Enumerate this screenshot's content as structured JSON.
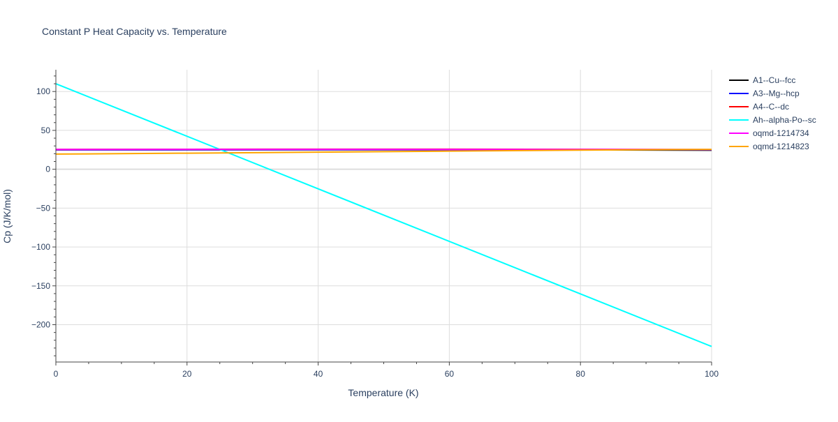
{
  "chart_data": {
    "type": "line",
    "title": "Constant P Heat Capacity vs. Temperature",
    "xlabel": "Temperature (K)",
    "ylabel": "Cp (J/K/mol)",
    "xlim": [
      0,
      100
    ],
    "ylim": [
      -248,
      128
    ],
    "x_ticks": [
      0,
      20,
      40,
      60,
      80,
      100
    ],
    "y_ticks": [
      -200,
      -150,
      -100,
      -50,
      0,
      50,
      100
    ],
    "grid": true,
    "legend_position": "right",
    "series": [
      {
        "name": "A1--Cu--fcc",
        "color": "#000000",
        "x": [
          0,
          20,
          40,
          60,
          80,
          100
        ],
        "y": [
          25,
          25,
          25,
          25,
          25,
          24.5
        ]
      },
      {
        "name": "A3--Mg--hcp",
        "color": "#0000ff",
        "x": [
          0,
          20,
          40,
          60,
          80,
          100
        ],
        "y": [
          25,
          25.2,
          25.3,
          25.3,
          25.3,
          25
        ]
      },
      {
        "name": "A4--C--dc",
        "color": "#ff0000",
        "x": [
          0,
          20,
          40,
          60,
          80,
          100
        ],
        "y": [
          25.5,
          25.7,
          25.8,
          25.8,
          25.6,
          25.3
        ]
      },
      {
        "name": "Ah--alpha-Po--sc",
        "color": "#00ffff",
        "x": [
          0,
          100
        ],
        "y": [
          110,
          -228
        ]
      },
      {
        "name": "oqmd-1214734",
        "color": "#ff00ff",
        "x": [
          0,
          20,
          40,
          60,
          80,
          100
        ],
        "y": [
          25.5,
          25.6,
          25.6,
          25.5,
          25.4,
          25.2
        ]
      },
      {
        "name": "oqmd-1214823",
        "color": "#ffa500",
        "x": [
          0,
          20,
          40,
          60,
          80,
          100
        ],
        "y": [
          19.5,
          20.7,
          22,
          23.3,
          24.6,
          25.5
        ]
      }
    ]
  }
}
